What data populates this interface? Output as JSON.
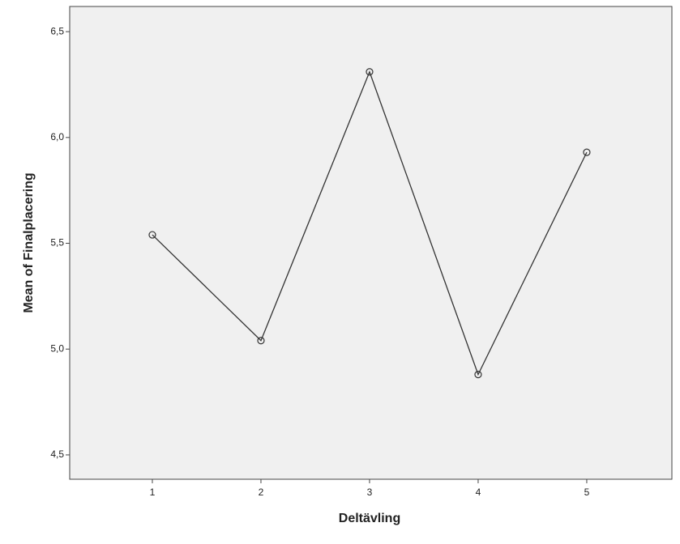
{
  "chart_data": {
    "type": "line",
    "x_label": "Deltävling",
    "y_label": "Mean of Finalplacering",
    "x": [
      1,
      2,
      3,
      4,
      5
    ],
    "series": [
      {
        "name": "Mean of Finalplacering",
        "color": "#333333",
        "values": [
          5.54,
          5.04,
          6.31,
          4.88,
          5.93
        ]
      }
    ],
    "xlim": [
      0.239,
      5.784
    ],
    "xticks": [
      1,
      2,
      3,
      4,
      5
    ],
    "ylim": [
      4.385,
      6.619
    ],
    "yticks": [
      {
        "value": 4.5,
        "label": "4,5"
      },
      {
        "value": 5.0,
        "label": "5,0"
      },
      {
        "value": 5.5,
        "label": "5,5"
      },
      {
        "value": 6.0,
        "label": "6,0"
      },
      {
        "value": 6.5,
        "label": "6,5"
      }
    ],
    "plot_background": "#f0f0f0"
  }
}
